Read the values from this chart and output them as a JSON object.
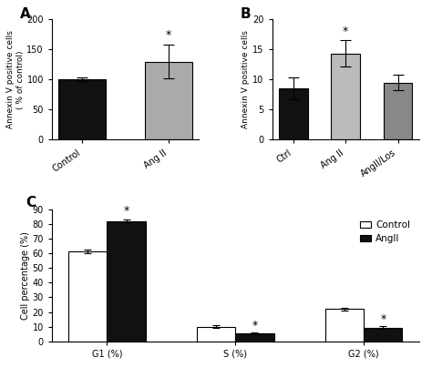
{
  "panel_A": {
    "label": "A",
    "categories": [
      "Control",
      "Ang II"
    ],
    "values": [
      101,
      130
    ],
    "errors": [
      3,
      28
    ],
    "colors": [
      "#111111",
      "#aaaaaa"
    ],
    "ylabel": "Annexin V positive cells\n( % of control)",
    "ylim": [
      0,
      200
    ],
    "yticks": [
      0,
      50,
      100,
      150,
      200
    ],
    "sig_bar": [
      1
    ],
    "sig_label": "*"
  },
  "panel_B": {
    "label": "B",
    "categories": [
      "Ctrl",
      "Ang II",
      "AngII/Los"
    ],
    "values": [
      8.5,
      14.3,
      9.5
    ],
    "errors": [
      1.8,
      2.2,
      1.3
    ],
    "colors": [
      "#111111",
      "#bbbbbb",
      "#888888"
    ],
    "ylabel": "Annexin V positive cells",
    "ylim": [
      0,
      20
    ],
    "yticks": [
      0,
      5,
      10,
      15,
      20
    ],
    "sig_bar": [
      1
    ],
    "sig_label": "*"
  },
  "panel_C": {
    "label": "C",
    "categories": [
      "G1 (%)",
      "S (%)",
      "G2 (%)"
    ],
    "control_values": [
      61,
      10,
      22
    ],
    "angii_values": [
      82,
      5.5,
      9.5
    ],
    "control_errors": [
      1.2,
      0.8,
      1.0
    ],
    "angii_errors": [
      1.0,
      0.5,
      0.8
    ],
    "control_color": "#ffffff",
    "angii_color": "#111111",
    "ylabel": "Cell percentage (%)",
    "ylim": [
      0,
      90
    ],
    "yticks": [
      0,
      10,
      20,
      30,
      40,
      50,
      60,
      70,
      80,
      90
    ],
    "legend_labels": [
      "Control",
      "AngII"
    ],
    "sig_label": "*"
  }
}
